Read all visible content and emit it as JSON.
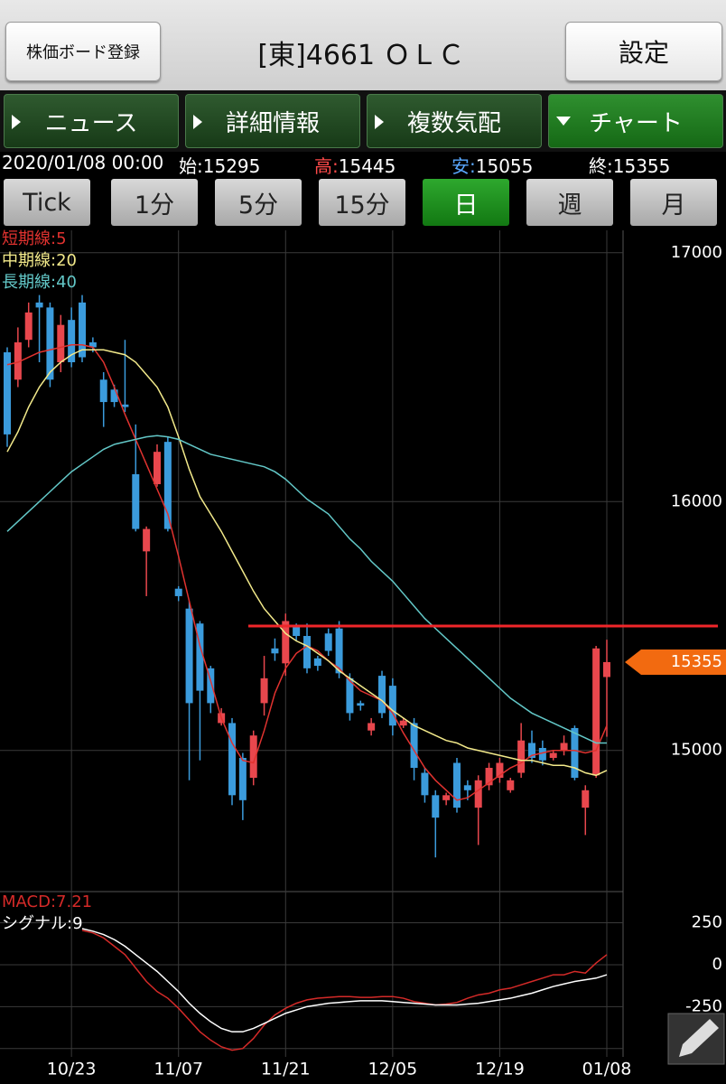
{
  "header": {
    "left_button": "株価ボード登録",
    "title": "[東]4661 ＯＬＣ",
    "right_button": "設定"
  },
  "tabs": [
    "ニュース",
    "詳細情報",
    "複数気配",
    "チャート"
  ],
  "info": {
    "datetime": "2020/01/08 00:00",
    "open_label": "始:",
    "high_label": "高:",
    "low_label": "安:",
    "close_label": "終:"
  },
  "periods": [
    "Tick",
    "1分",
    "5分",
    "15分",
    "日",
    "週",
    "月"
  ],
  "chart_data": [
    {
      "type": "candlestick",
      "categories": [
        null,
        null,
        null,
        null,
        null,
        null,
        "10/23",
        null,
        null,
        null,
        null,
        null,
        null,
        null,
        null,
        null,
        "11/07",
        null,
        null,
        null,
        null,
        null,
        null,
        null,
        null,
        null,
        "11/21",
        null,
        null,
        null,
        null,
        null,
        null,
        null,
        null,
        null,
        "12/05",
        null,
        null,
        null,
        null,
        null,
        null,
        null,
        null,
        null,
        "12/19",
        null,
        null,
        null,
        null,
        null,
        null,
        null,
        null,
        null,
        "01/08"
      ],
      "open": [
        16600,
        16490,
        16650,
        16800,
        16780,
        16560,
        16730,
        16800,
        16640,
        16490,
        16450,
        16390,
        16110,
        15800,
        16070,
        16240,
        15650,
        15570,
        15510,
        15330,
        15110,
        15110,
        14970,
        14890,
        15190,
        15410,
        15350,
        15500,
        15460,
        15370,
        15470,
        15490,
        15290,
        15190,
        15080,
        15300,
        15260,
        15100,
        15110,
        14910,
        14820,
        14800,
        14950,
        14860,
        14770,
        14860,
        14890,
        14840,
        14910,
        15030,
        15010,
        14970,
        15000,
        15090,
        14770,
        14900,
        15295
      ],
      "high": [
        16620,
        16700,
        16800,
        16830,
        16800,
        16750,
        16780,
        16830,
        16660,
        16520,
        16470,
        16650,
        16310,
        15900,
        16230,
        16260,
        15660,
        15600,
        15520,
        15340,
        15170,
        15130,
        14990,
        15080,
        15380,
        15450,
        15550,
        15510,
        15510,
        15380,
        15490,
        15520,
        15310,
        15200,
        15130,
        15320,
        15290,
        15130,
        15130,
        14930,
        14840,
        14830,
        14970,
        14880,
        14900,
        14950,
        14970,
        14890,
        15110,
        15080,
        15040,
        15000,
        15060,
        15100,
        14860,
        15420,
        15445
      ],
      "low": [
        16220,
        16460,
        16620,
        16560,
        16460,
        16520,
        16540,
        16560,
        16600,
        16300,
        16380,
        16360,
        15880,
        15620,
        16060,
        15880,
        15600,
        14880,
        14960,
        15150,
        15100,
        14780,
        14720,
        14860,
        15140,
        15360,
        15300,
        15440,
        15310,
        15320,
        15380,
        15290,
        15120,
        15160,
        15060,
        15130,
        15060,
        15090,
        14880,
        14790,
        14570,
        14780,
        14750,
        14800,
        14620,
        14840,
        14870,
        14830,
        14890,
        14950,
        14940,
        14960,
        14980,
        14880,
        14660,
        14890,
        15055
      ],
      "close": [
        16270,
        16640,
        16760,
        16780,
        16490,
        16710,
        16560,
        16580,
        16620,
        16400,
        16400,
        16380,
        15890,
        15890,
        16200,
        15890,
        15620,
        15190,
        15240,
        15190,
        15150,
        14820,
        14800,
        15060,
        15290,
        15390,
        15520,
        15460,
        15330,
        15340,
        15400,
        15310,
        15150,
        15180,
        15110,
        15150,
        15100,
        15120,
        14930,
        14820,
        14730,
        14820,
        14770,
        14840,
        14880,
        14930,
        14950,
        14880,
        15040,
        14970,
        14960,
        14990,
        15030,
        14890,
        14840,
        15410,
        15355
      ],
      "up_color": "#e8474d",
      "down_color": "#3b9bdc",
      "series": [
        {
          "name": "短期線:5",
          "color": "#e0322f",
          "values": [
            16550,
            16560,
            16580,
            16600,
            16610,
            16620,
            16630,
            16630,
            16620,
            16560,
            16460,
            16350,
            16250,
            16150,
            16050,
            15950,
            15780,
            15600,
            15420,
            15280,
            15130,
            15030,
            14960,
            14950,
            15080,
            15230,
            15330,
            15390,
            15420,
            15400,
            15360,
            15330,
            15280,
            15240,
            15220,
            15200,
            15150,
            15070,
            15000,
            14930,
            14880,
            14840,
            14800,
            14810,
            14840,
            14870,
            14900,
            14930,
            14950,
            14980,
            14990,
            15000,
            15000,
            15000,
            14990,
            15000,
            15100
          ]
        },
        {
          "name": "中期線:20",
          "color": "#f2e98a",
          "values": [
            16200,
            16280,
            16380,
            16460,
            16520,
            16560,
            16590,
            16610,
            16610,
            16610,
            16600,
            16590,
            16560,
            16510,
            16460,
            16380,
            16260,
            16130,
            16020,
            15950,
            15880,
            15800,
            15720,
            15640,
            15570,
            15520,
            15470,
            15440,
            15420,
            15390,
            15360,
            15320,
            15290,
            15260,
            15230,
            15200,
            15160,
            15130,
            15100,
            15080,
            15060,
            15040,
            15030,
            15010,
            15000,
            14990,
            14980,
            14970,
            14960,
            14960,
            14950,
            14940,
            14940,
            14930,
            14910,
            14900,
            14920
          ]
        },
        {
          "name": "長期線:40",
          "color": "#63c8c8",
          "values": [
            15880,
            15920,
            15960,
            16000,
            16040,
            16080,
            16120,
            16150,
            16180,
            16210,
            16230,
            16240,
            16250,
            16260,
            16265,
            16260,
            16250,
            16230,
            16210,
            16190,
            16180,
            16170,
            16160,
            16150,
            16140,
            16120,
            16090,
            16050,
            16010,
            15980,
            15950,
            15900,
            15850,
            15810,
            15760,
            15720,
            15680,
            15630,
            15580,
            15530,
            15490,
            15450,
            15410,
            15370,
            15330,
            15290,
            15250,
            15210,
            15180,
            15150,
            15130,
            15110,
            15090,
            15070,
            15050,
            15030,
            15030
          ]
        }
      ],
      "hline": {
        "value": 15500,
        "color": "#f0262a"
      },
      "ylim": [
        14440,
        17090
      ],
      "yticks": [
        15000,
        16000,
        17000
      ],
      "grid": true
    },
    {
      "type": "line",
      "series": [
        {
          "name": "MACD:7.21",
          "color": "#d42a28",
          "values": [
            null,
            null,
            null,
            null,
            null,
            null,
            null,
            205,
            190,
            160,
            110,
            60,
            -20,
            -100,
            -160,
            -200,
            -260,
            -330,
            -400,
            -450,
            -490,
            -510,
            -500,
            -440,
            -360,
            -300,
            -260,
            -230,
            -210,
            -200,
            -195,
            -190,
            -190,
            -195,
            -195,
            -190,
            -190,
            -200,
            -220,
            -230,
            -240,
            -235,
            -225,
            -200,
            -180,
            -170,
            -150,
            -140,
            -120,
            -100,
            -80,
            -60,
            -60,
            -40,
            -50,
            10,
            60
          ]
        },
        {
          "name": "シグナル:9",
          "color": "#ffffff",
          "values": [
            null,
            null,
            null,
            null,
            null,
            null,
            null,
            215,
            200,
            180,
            150,
            110,
            60,
            10,
            -40,
            -100,
            -160,
            -230,
            -290,
            -340,
            -380,
            -400,
            -400,
            -380,
            -350,
            -320,
            -290,
            -270,
            -250,
            -240,
            -230,
            -225,
            -220,
            -215,
            -215,
            -215,
            -220,
            -225,
            -230,
            -235,
            -240,
            -240,
            -240,
            -235,
            -230,
            -220,
            -210,
            -200,
            -185,
            -170,
            -150,
            -130,
            -115,
            -100,
            -90,
            -80,
            -60
          ]
        }
      ],
      "ylim": [
        -550,
        420
      ],
      "yticks": [
        -500,
        -250,
        0,
        250
      ],
      "grid": true
    }
  ]
}
